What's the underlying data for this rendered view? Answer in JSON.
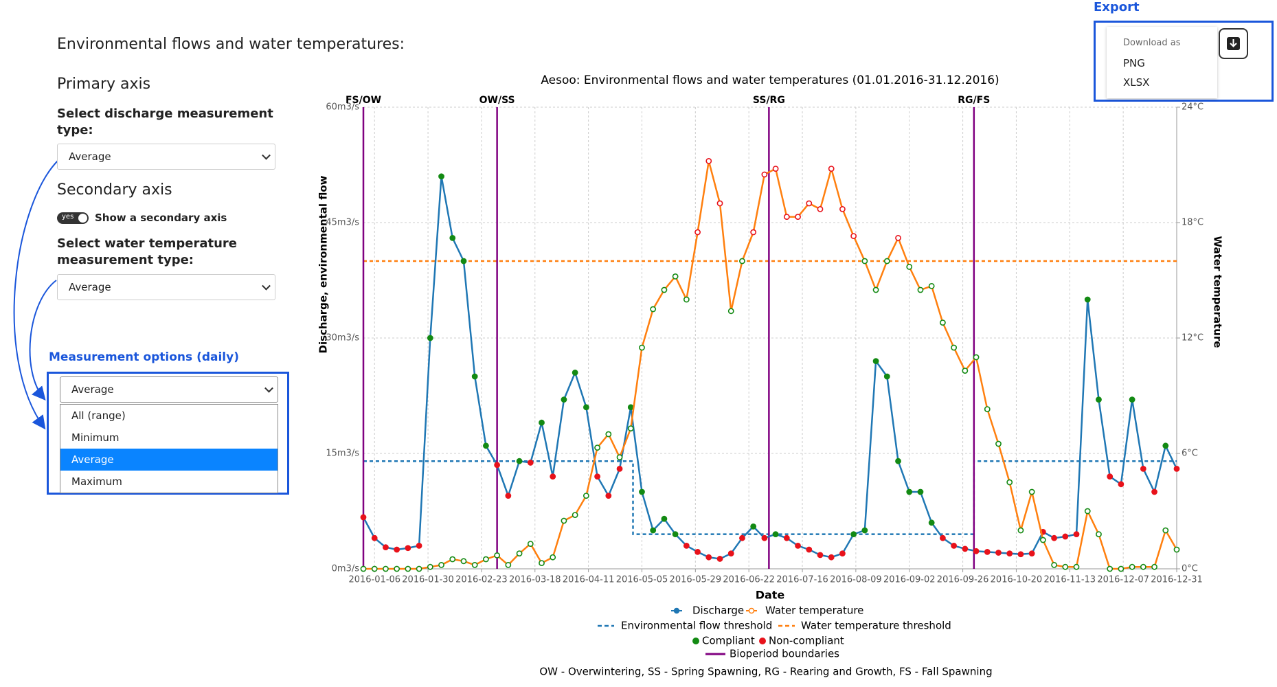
{
  "page": {
    "heading": "Environmental flows and water temperatures:",
    "primary_axis": {
      "title": "Primary axis",
      "label": "Select discharge measurement type:",
      "selected": "Average"
    },
    "secondary_axis": {
      "title": "Secondary axis",
      "toggle": "yes",
      "toggle_label": "Show a secondary axis",
      "label": "Select water temperature measurement type:",
      "selected": "Average"
    },
    "measurement_options": {
      "title": "Measurement options (daily)",
      "selected": "Average",
      "options": [
        "All (range)",
        "Minimum",
        "Average",
        "Maximum"
      ],
      "highlighted": "Average"
    },
    "export": {
      "title": "Export",
      "download_as": "Download as",
      "options": [
        "PNG",
        "XLSX"
      ]
    }
  },
  "chart_data": {
    "type": "line",
    "title": "Aesoo: Environmental flows and water temperatures (01.01.2016-31.12.2016)",
    "x_label": "Date",
    "y_label": "Discharge, environmental flow",
    "y2_label": "Water temperature",
    "xlim": [
      "2016-01-01",
      "2016-12-31"
    ],
    "xticks": [
      "2016-01-06",
      "2016-01-30",
      "2016-02-23",
      "2016-03-18",
      "2016-04-11",
      "2016-05-05",
      "2016-05-29",
      "2016-06-22",
      "2016-07-16",
      "2016-08-09",
      "2016-09-02",
      "2016-09-26",
      "2016-10-20",
      "2016-11-13",
      "2016-12-07",
      "2016-12-31"
    ],
    "ylim": [
      0,
      60
    ],
    "yticks": [
      {
        "value": 0,
        "label": "0m3/s"
      },
      {
        "value": 15,
        "label": "15m3/s"
      },
      {
        "value": 30,
        "label": "30m3/s"
      },
      {
        "value": 45,
        "label": "45m3/s"
      },
      {
        "value": 60,
        "label": "60m3/s"
      }
    ],
    "y2lim": [
      0,
      24
    ],
    "y2ticks": [
      {
        "value": 0,
        "label": "0°C"
      },
      {
        "value": 6,
        "label": "6°C"
      },
      {
        "value": 12,
        "label": "12°C"
      },
      {
        "value": 18,
        "label": "18°C"
      },
      {
        "value": 24,
        "label": "24°C"
      }
    ],
    "grid": true,
    "x": [
      "2016-01-01",
      "2016-01-06",
      "2016-01-11",
      "2016-01-16",
      "2016-01-21",
      "2016-01-26",
      "2016-01-31",
      "2016-02-05",
      "2016-02-10",
      "2016-02-15",
      "2016-02-20",
      "2016-02-25",
      "2016-03-01",
      "2016-03-06",
      "2016-03-11",
      "2016-03-16",
      "2016-03-21",
      "2016-03-26",
      "2016-03-31",
      "2016-04-05",
      "2016-04-10",
      "2016-04-15",
      "2016-04-20",
      "2016-04-25",
      "2016-04-30",
      "2016-05-05",
      "2016-05-10",
      "2016-05-15",
      "2016-05-20",
      "2016-05-25",
      "2016-05-30",
      "2016-06-04",
      "2016-06-09",
      "2016-06-14",
      "2016-06-19",
      "2016-06-24",
      "2016-06-29",
      "2016-07-04",
      "2016-07-09",
      "2016-07-14",
      "2016-07-19",
      "2016-07-24",
      "2016-07-29",
      "2016-08-03",
      "2016-08-08",
      "2016-08-13",
      "2016-08-18",
      "2016-08-23",
      "2016-08-28",
      "2016-09-02",
      "2016-09-07",
      "2016-09-12",
      "2016-09-17",
      "2016-09-22",
      "2016-09-27",
      "2016-10-02",
      "2016-10-07",
      "2016-10-12",
      "2016-10-17",
      "2016-10-22",
      "2016-10-27",
      "2016-11-01",
      "2016-11-06",
      "2016-11-11",
      "2016-11-16",
      "2016-11-21",
      "2016-11-26",
      "2016-12-01",
      "2016-12-06",
      "2016-12-11",
      "2016-12-16",
      "2016-12-21",
      "2016-12-26",
      "2016-12-31"
    ],
    "series": [
      {
        "name": "Discharge",
        "color": "#1f77b4",
        "axis": "y",
        "marker": "filled",
        "values": [
          6.7,
          4,
          2.8,
          2.5,
          2.7,
          3,
          30,
          51,
          43,
          40,
          25,
          16,
          13.5,
          9.5,
          14,
          13.8,
          19,
          12,
          22,
          25.5,
          21,
          12,
          9.5,
          13,
          21,
          10,
          5,
          6.5,
          4.5,
          3,
          2.2,
          1.5,
          1.3,
          2,
          4,
          5.5,
          4,
          4.5,
          4,
          3,
          2.5,
          1.8,
          1.5,
          2,
          4.5,
          5,
          27,
          25,
          14,
          10,
          10,
          6,
          4,
          3,
          2.6,
          2.3,
          2.2,
          2.1,
          2,
          1.9,
          2,
          4.8,
          4,
          4.2,
          4.5,
          35,
          22,
          12,
          11,
          22,
          13,
          10,
          16,
          13
        ]
      },
      {
        "name": "Water temperature",
        "color": "#ff7f0e",
        "axis": "y2",
        "marker": "open",
        "values": [
          0,
          0,
          0,
          0,
          0,
          0,
          0.1,
          0.2,
          0.5,
          0.4,
          0.2,
          0.5,
          0.7,
          0.2,
          0.8,
          1.3,
          0.3,
          0.6,
          2.5,
          2.8,
          3.8,
          6.3,
          7,
          5.8,
          7.3,
          11.5,
          13.5,
          14.5,
          15.2,
          14,
          17.5,
          21.2,
          19,
          13.4,
          16,
          17.5,
          20.5,
          20.8,
          18.3,
          18.3,
          19,
          18.7,
          20.8,
          18.7,
          17.3,
          16,
          14.5,
          16,
          17.2,
          15.7,
          14.5,
          14.7,
          12.8,
          11.5,
          10.3,
          11,
          8.3,
          6.5,
          4.5,
          2,
          4,
          1.5,
          0.2,
          0.1,
          0.1,
          3,
          1.8,
          0,
          0,
          0.1,
          0.1,
          0.1,
          2,
          1
        ]
      }
    ],
    "thresholds": [
      {
        "name": "Environmental flow threshold",
        "color": "#1f77b4",
        "axis": "y",
        "limit": "min",
        "x": [
          "2016-01-01",
          "2016-05-01",
          "2016-05-01",
          "2016-10-01",
          "2016-10-01",
          "2016-12-31"
        ],
        "values": [
          14,
          14,
          4.5,
          4.5,
          14,
          14
        ]
      },
      {
        "name": "Water temperature threshold",
        "color": "#ff7f0e",
        "axis": "y2",
        "limit": "max",
        "x": [
          "2016-01-01",
          "2016-12-31"
        ],
        "values": [
          16,
          16
        ]
      }
    ],
    "compliance": {
      "compliant": {
        "name": "Compliant",
        "color": "#138a13"
      },
      "non_compliant": {
        "name": "Non-compliant",
        "color": "#e8121b"
      }
    },
    "bioperiods": {
      "name": "Bioperiod boundaries",
      "color": "#800080",
      "boundaries": [
        {
          "date": "2016-01-01",
          "label": "FS/OW"
        },
        {
          "date": "2016-03-01",
          "label": "OW/SS"
        },
        {
          "date": "2016-07-01",
          "label": "SS/RG"
        },
        {
          "date": "2016-10-01",
          "label": "RG/FS"
        }
      ]
    },
    "note": "OW - Overwintering,  SS - Spring Spawning,  RG - Rearing and Growth,  FS - Fall Spawning"
  }
}
